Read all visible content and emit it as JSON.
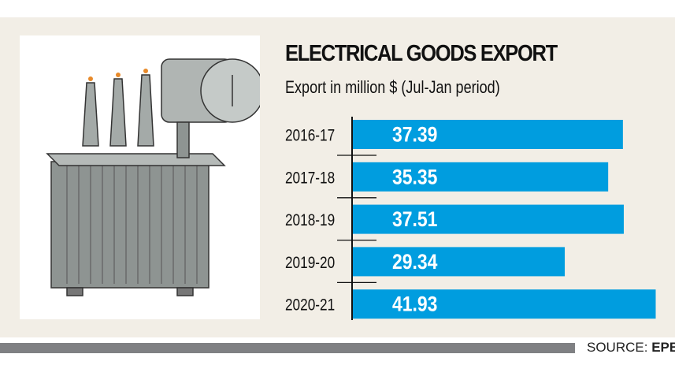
{
  "chart_data": {
    "type": "bar",
    "orientation": "horizontal",
    "title": "ELECTRICAL GOODS EXPORT",
    "subtitle": "Export in million $ (Jul-Jan period)",
    "categories": [
      "2016-17",
      "2017-18",
      "2018-19",
      "2019-20",
      "2020-21"
    ],
    "values": [
      37.39,
      35.35,
      37.51,
      29.34,
      41.93
    ],
    "value_labels": [
      "37.39",
      "35.35",
      "37.51",
      "29.34",
      "41.93"
    ],
    "bar_color": "#009ddf",
    "grid": false
  },
  "source": {
    "label": "SOURCE:",
    "name": "EPB"
  },
  "illustration": "transformer"
}
